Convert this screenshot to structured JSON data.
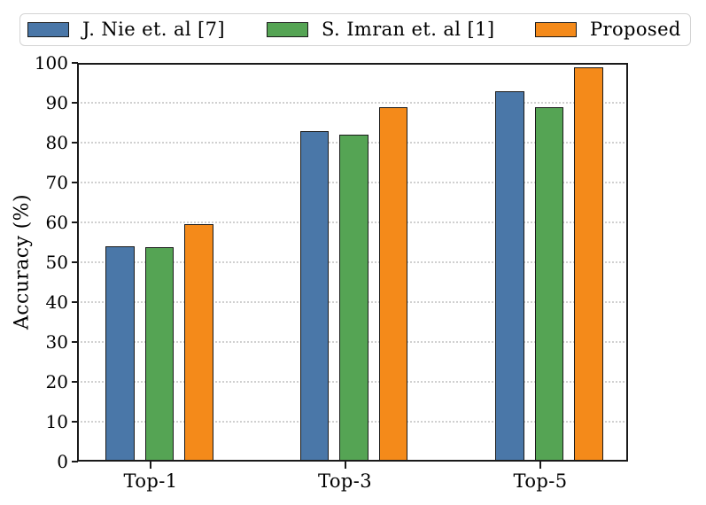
{
  "chart_data": {
    "type": "bar",
    "title": "",
    "xlabel": "",
    "ylabel": "Accuracy (%)",
    "categories": [
      "Top-1",
      "Top-3",
      "Top-5"
    ],
    "series": [
      {
        "name": "J. Nie et. al [7]",
        "color": "#4A77A8",
        "values": [
          54.0,
          83.0,
          93.0
        ]
      },
      {
        "name": "S. Imran et. al [1]",
        "color": "#55A454",
        "values": [
          53.7,
          82.0,
          89.0
        ]
      },
      {
        "name": "Proposed",
        "color": "#F48A1A",
        "values": [
          59.5,
          89.0,
          98.9
        ]
      }
    ],
    "ylim": [
      0,
      100
    ],
    "yticks": [
      0,
      10,
      20,
      30,
      40,
      50,
      60,
      70,
      80,
      90,
      100
    ],
    "grid": "horizontal dotted",
    "legend_position": "top"
  },
  "styles": {
    "bar_edge_color": "#1a1a1a",
    "grid_color": "#d0d0d0",
    "spine_color": "#1a1a1a",
    "legend_border_color": "#d4d4d4",
    "background": "#ffffff"
  }
}
